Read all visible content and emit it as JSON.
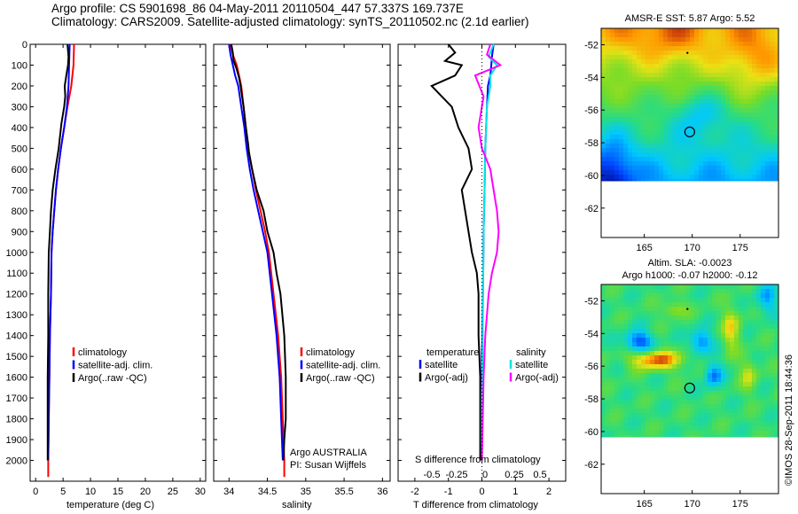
{
  "header": {
    "line1": "Argo profile: CS 5901698_86 04-May-2011 20110504_447 57.337S 169.737E",
    "line2": "Climatology: CARS2009. Satellite-adjusted climatology: synTS_20110502.nc (2.1d earlier)"
  },
  "colors": {
    "climatology": "#ff0000",
    "satellite": "#0000ff",
    "argo": "#000000",
    "sat_salinity": "#00e5e5",
    "argo_salinity": "#ff00ff"
  },
  "chart_data": [
    {
      "type": "line",
      "xlabel": "temperature (deg C)",
      "ylabel": "",
      "xlim": [
        -1,
        31
      ],
      "ylim": [
        2100,
        0
      ],
      "xticks": [
        "0",
        "5",
        "10",
        "15",
        "20",
        "25",
        "30"
      ],
      "yticks": [
        "0",
        "100",
        "200",
        "300",
        "400",
        "500",
        "600",
        "700",
        "800",
        "900",
        "1000",
        "1100",
        "1200",
        "1300",
        "1400",
        "1500",
        "1600",
        "1700",
        "1800",
        "1900",
        "2000"
      ],
      "legend": [
        "climatology",
        "satellite-adj. clim.",
        "Argo(..raw -QC)"
      ],
      "series": [
        {
          "name": "climatology",
          "color": "#ff0000",
          "points": [
            [
              7.0,
              0
            ],
            [
              6.9,
              100
            ],
            [
              6.5,
              200
            ],
            [
              5.8,
              300
            ],
            [
              5.2,
              400
            ],
            [
              4.6,
              500
            ],
            [
              4.1,
              600
            ],
            [
              3.7,
              700
            ],
            [
              3.4,
              800
            ],
            [
              3.1,
              900
            ],
            [
              2.9,
              1000
            ],
            [
              2.8,
              1200
            ],
            [
              2.6,
              1400
            ],
            [
              2.5,
              1600
            ],
            [
              2.4,
              1800
            ],
            [
              2.3,
              2000
            ],
            [
              2.3,
              2080
            ]
          ]
        },
        {
          "name": "satellite-adj. clim.",
          "color": "#0000ff",
          "points": [
            [
              6.2,
              0
            ],
            [
              6.1,
              100
            ],
            [
              6.0,
              200
            ],
            [
              5.7,
              300
            ],
            [
              5.2,
              400
            ],
            [
              4.6,
              500
            ],
            [
              4.1,
              600
            ],
            [
              3.7,
              700
            ],
            [
              3.4,
              800
            ],
            [
              3.1,
              900
            ],
            [
              2.9,
              1000
            ],
            [
              2.8,
              1200
            ],
            [
              2.6,
              1400
            ],
            [
              2.5,
              1600
            ],
            [
              2.4,
              1800
            ],
            [
              2.3,
              2000
            ]
          ]
        },
        {
          "name": "Argo(..raw -QC)",
          "color": "#000000",
          "points": [
            [
              5.8,
              0
            ],
            [
              6.0,
              60
            ],
            [
              5.9,
              100
            ],
            [
              5.6,
              150
            ],
            [
              5.3,
              200
            ],
            [
              5.4,
              250
            ],
            [
              5.2,
              300
            ],
            [
              4.7,
              380
            ],
            [
              4.2,
              500
            ],
            [
              3.6,
              600
            ],
            [
              3.1,
              700
            ],
            [
              2.8,
              800
            ],
            [
              2.6,
              900
            ],
            [
              2.4,
              1000
            ],
            [
              2.3,
              1200
            ],
            [
              2.3,
              1400
            ],
            [
              2.2,
              1600
            ],
            [
              2.2,
              1800
            ],
            [
              2.2,
              2000
            ]
          ]
        }
      ]
    },
    {
      "type": "line",
      "xlabel": "salinity",
      "ylabel": "",
      "xlim": [
        33.8,
        36.1
      ],
      "ylim": [
        2100,
        0
      ],
      "xticks": [
        "34",
        "34.5",
        "35",
        "35.5",
        "36"
      ],
      "legend": [
        "climatology",
        "satellite-adj. clim.",
        "Argo(..raw -QC)"
      ],
      "annotation": [
        "Argo AUSTRALIA",
        "PI: Susan Wijffels"
      ],
      "series": [
        {
          "name": "climatology",
          "color": "#ff0000",
          "points": [
            [
              34.02,
              0
            ],
            [
              34.05,
              50
            ],
            [
              34.1,
              100
            ],
            [
              34.13,
              150
            ],
            [
              34.16,
              200
            ],
            [
              34.19,
              300
            ],
            [
              34.22,
              400
            ],
            [
              34.25,
              500
            ],
            [
              34.3,
              600
            ],
            [
              34.35,
              700
            ],
            [
              34.41,
              800
            ],
            [
              34.47,
              900
            ],
            [
              34.52,
              1000
            ],
            [
              34.58,
              1200
            ],
            [
              34.64,
              1400
            ],
            [
              34.68,
              1600
            ],
            [
              34.7,
              1800
            ],
            [
              34.72,
              2000
            ],
            [
              34.72,
              2080
            ]
          ]
        },
        {
          "name": "satellite-adj. clim.",
          "color": "#0000ff",
          "points": [
            [
              34.0,
              0
            ],
            [
              34.02,
              50
            ],
            [
              34.05,
              100
            ],
            [
              34.08,
              150
            ],
            [
              34.12,
              200
            ],
            [
              34.16,
              300
            ],
            [
              34.2,
              400
            ],
            [
              34.23,
              500
            ],
            [
              34.27,
              600
            ],
            [
              34.32,
              700
            ],
            [
              34.38,
              800
            ],
            [
              34.44,
              900
            ],
            [
              34.5,
              1000
            ],
            [
              34.56,
              1200
            ],
            [
              34.62,
              1400
            ],
            [
              34.66,
              1600
            ],
            [
              34.68,
              1800
            ],
            [
              34.7,
              2000
            ]
          ]
        },
        {
          "name": "Argo(..raw -QC)",
          "color": "#000000",
          "points": [
            [
              34.03,
              0
            ],
            [
              34.05,
              40
            ],
            [
              34.06,
              80
            ],
            [
              34.1,
              120
            ],
            [
              34.13,
              160
            ],
            [
              34.15,
              200
            ],
            [
              34.19,
              300
            ],
            [
              34.22,
              400
            ],
            [
              34.25,
              480
            ],
            [
              34.26,
              520
            ],
            [
              34.3,
              600
            ],
            [
              34.36,
              700
            ],
            [
              34.45,
              800
            ],
            [
              34.5,
              900
            ],
            [
              34.58,
              1000
            ],
            [
              34.62,
              1100
            ],
            [
              34.67,
              1200
            ],
            [
              34.72,
              1400
            ],
            [
              34.74,
              1600
            ],
            [
              34.74,
              1800
            ],
            [
              34.72,
              1900
            ],
            [
              34.71,
              2000
            ]
          ]
        }
      ]
    },
    {
      "type": "line",
      "xlabel": "T difference from climatology",
      "xlabel2": "S difference from climatology",
      "ylabel": "",
      "xlim": [
        -2.5,
        2.5
      ],
      "ylim": [
        2100,
        0
      ],
      "xticks": [
        "-2",
        "-1",
        "0",
        "1",
        "2"
      ],
      "xticks2": [
        "-0.5",
        "-0.25",
        "0",
        "0.25",
        "0.5"
      ],
      "legend_temperature": [
        "temperature",
        "satellite",
        "Argo(-adj)"
      ],
      "legend_salinity": [
        "salinity",
        "satellite",
        "Argo(-adj)"
      ],
      "series": [
        {
          "name": "satellite",
          "color": "#0000ff",
          "points": [
            [
              0.35,
              0
            ],
            [
              0.3,
              60
            ],
            [
              0.28,
              100
            ],
            [
              0.25,
              150
            ],
            [
              0.18,
              200
            ],
            [
              0.15,
              300
            ],
            [
              0.1,
              500
            ],
            [
              0.08,
              700
            ],
            [
              0.05,
              900
            ],
            [
              0.04,
              1100
            ],
            [
              0.02,
              1300
            ],
            [
              0.0,
              1500
            ],
            [
              0.0,
              1700
            ],
            [
              0.0,
              2000
            ]
          ]
        },
        {
          "name": "Argo(-adj)",
          "color": "#000000",
          "points": [
            [
              -1.0,
              0
            ],
            [
              -0.8,
              40
            ],
            [
              -1.1,
              80
            ],
            [
              -0.6,
              100
            ],
            [
              -0.8,
              150
            ],
            [
              -1.5,
              200
            ],
            [
              -1.2,
              250
            ],
            [
              -0.9,
              300
            ],
            [
              -0.7,
              400
            ],
            [
              -0.4,
              500
            ],
            [
              -0.3,
              600
            ],
            [
              -0.6,
              700
            ],
            [
              -0.5,
              800
            ],
            [
              -0.4,
              900
            ],
            [
              -0.3,
              1000
            ],
            [
              -0.15,
              1100
            ],
            [
              -0.1,
              1200
            ],
            [
              -0.1,
              1400
            ],
            [
              -0.05,
              1600
            ],
            [
              -0.05,
              2000
            ]
          ]
        },
        {
          "name": "satellite (S)",
          "color": "#00e5e5",
          "points": [
            [
              0.35,
              0
            ],
            [
              0.2,
              60
            ],
            [
              0.45,
              100
            ],
            [
              0.25,
              150
            ],
            [
              0.25,
              200
            ],
            [
              0.15,
              300
            ],
            [
              0.1,
              500
            ],
            [
              0.08,
              700
            ],
            [
              0.05,
              900
            ],
            [
              0.04,
              1100
            ],
            [
              0.03,
              1300
            ],
            [
              0.02,
              1500
            ],
            [
              0.0,
              1700
            ],
            [
              0.0,
              2000
            ]
          ]
        },
        {
          "name": "Argo(-adj) (S)",
          "color": "#ff00ff",
          "points": [
            [
              0.25,
              0
            ],
            [
              0.15,
              50
            ],
            [
              0.55,
              100
            ],
            [
              -0.2,
              150
            ],
            [
              0.05,
              250
            ],
            [
              -0.1,
              400
            ],
            [
              0.0,
              500
            ],
            [
              0.25,
              600
            ],
            [
              0.35,
              700
            ],
            [
              0.45,
              800
            ],
            [
              0.5,
              900
            ],
            [
              0.45,
              1000
            ],
            [
              0.3,
              1100
            ],
            [
              0.2,
              1200
            ],
            [
              0.1,
              1400
            ],
            [
              0.05,
              1600
            ],
            [
              0.0,
              2000
            ]
          ]
        }
      ]
    },
    {
      "type": "heatmap",
      "title": "AMSR-E SST: 5.87 Argo: 5.52",
      "xlim": [
        160.5,
        179
      ],
      "ylim": [
        -63.8,
        -51
      ],
      "xticks": [
        "165",
        "170",
        "175"
      ],
      "yticks": [
        "-52",
        "-54",
        "-56",
        "-58",
        "-60",
        "-62"
      ],
      "marker": [
        169.737,
        -57.337
      ]
    },
    {
      "type": "heatmap",
      "title": "Altim. SLA: -0.0023",
      "title2": "Argo h1000: -0.07 h2000: -0.12",
      "xlim": [
        160.5,
        179
      ],
      "ylim": [
        -63.8,
        -51
      ],
      "xticks": [
        "165",
        "170",
        "175"
      ],
      "yticks": [
        "-52",
        "-54",
        "-56",
        "-58",
        "-60",
        "-62"
      ],
      "marker": [
        169.737,
        -57.337
      ]
    }
  ],
  "credit": "©IMOS 28-Sep-2011 18:44:36"
}
